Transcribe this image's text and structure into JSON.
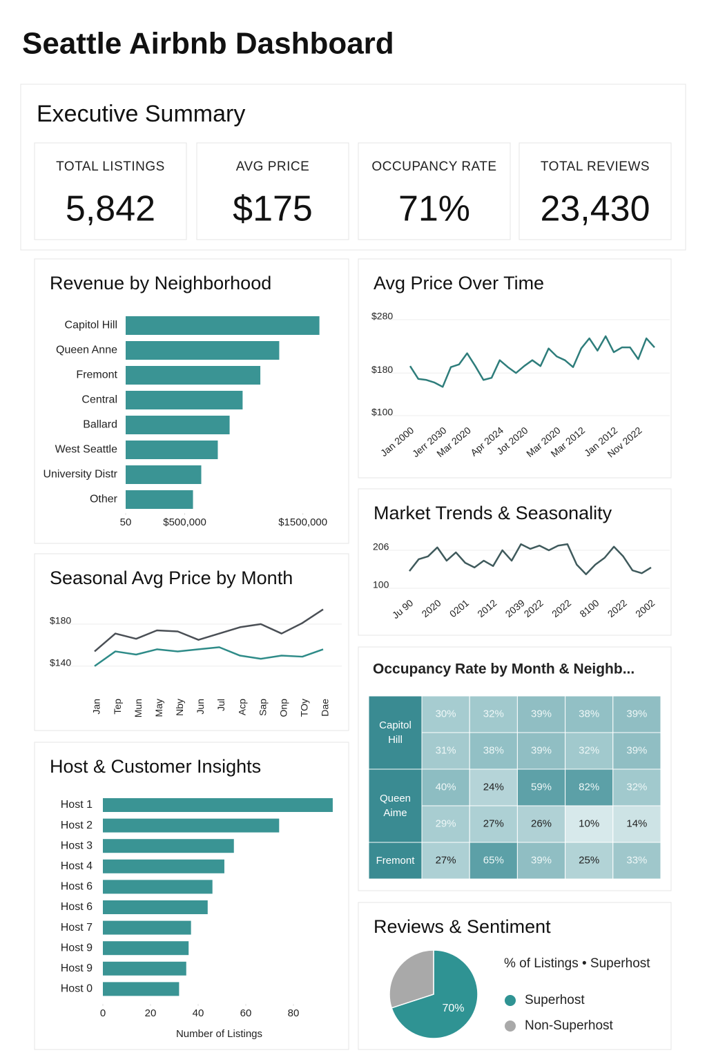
{
  "title": "Seattle Airbnb Dashboard",
  "summary": {
    "title": "Executive Summary",
    "kpis": [
      {
        "label": "TOTAL LISTINGS",
        "value": "5,842"
      },
      {
        "label": "AVG PRICE",
        "value": "$175"
      },
      {
        "label": "OCCUPANCY RATE",
        "value": "71%"
      },
      {
        "label": "TOTAL REVIEWS",
        "value": "23,430"
      }
    ]
  },
  "chart_data": [
    {
      "type": "hbar",
      "title": "Revenue by Neighborhood",
      "categories": [
        "Capitol Hill",
        "Queen Anne",
        "Fremont",
        "Central",
        "Ballard",
        "West Seattle",
        "University Distr",
        "Other"
      ],
      "values": [
        1640000,
        1300000,
        1140000,
        990000,
        880000,
        780000,
        640000,
        570000
      ],
      "color": "#3a9494",
      "xlim": [
        50,
        1800000
      ],
      "xticks": [
        50,
        {
          "value": 500000,
          "label": "$500,000"
        },
        {
          "value": 1500000,
          "label": "$1500,000"
        }
      ]
    },
    {
      "type": "line",
      "title": "Avg Price Over Time",
      "categories": [
        "Jan 2000",
        null,
        null,
        null,
        "Jerr 2030",
        null,
        null,
        "Mar 2020",
        null,
        null,
        null,
        "Apr 2024",
        null,
        null,
        "Jot 2020",
        null,
        null,
        null,
        "Mar 2020",
        null,
        null,
        "Mar 2012",
        null,
        null,
        null,
        "Jan 2012",
        null,
        null,
        "Nov 2022",
        null,
        null
      ],
      "values": [
        193,
        169,
        167,
        162,
        154,
        191,
        196,
        217,
        193,
        167,
        171,
        204,
        191,
        180,
        193,
        204,
        193,
        226,
        211,
        204,
        191,
        226,
        245,
        222,
        249,
        219,
        228,
        228,
        206,
        245,
        228
      ],
      "color": "#2e7d7b",
      "ylim": [
        100,
        280
      ],
      "yticks": [
        {
          "value": 100,
          "label": "$100"
        },
        {
          "value": 180,
          "label": "$180"
        },
        {
          "value": 280,
          "label": "$280"
        }
      ],
      "grid": true
    },
    {
      "type": "line",
      "title": "Seasonal Avg Price by Month",
      "categories": [
        "Jan",
        "Tep",
        "Mun",
        "May",
        "Nby",
        "Jun",
        "Jul",
        "Acp",
        "Sap",
        "Onp",
        "TOy",
        "Dae"
      ],
      "series": [
        {
          "color": "#4a4f55",
          "values": [
            154,
            171,
            166,
            174,
            173,
            165,
            171,
            177,
            180,
            171,
            181,
            194
          ]
        },
        {
          "color": "#2e8b88",
          "values": [
            140,
            154,
            151,
            156,
            154,
            156,
            158,
            150,
            147,
            150,
            149,
            156
          ]
        }
      ],
      "ylim": [
        130,
        195
      ],
      "yticks": [
        {
          "value": 140,
          "label": "$140"
        },
        {
          "value": 180,
          "label": "$180"
        }
      ],
      "grid": true
    },
    {
      "type": "line",
      "title": "Market Trends & Seasonality",
      "categories": [
        "Ju 90",
        null,
        null,
        "2020",
        null,
        null,
        "0201",
        null,
        null,
        "2012",
        null,
        null,
        "2039",
        null,
        "2022",
        null,
        null,
        "2022",
        null,
        null,
        "8100",
        null,
        null,
        "2022",
        null,
        null,
        "2002"
      ],
      "values": [
        148,
        181,
        189,
        214,
        177,
        200,
        171,
        158,
        177,
        162,
        206,
        177,
        223,
        210,
        219,
        206,
        219,
        223,
        166,
        139,
        166,
        185,
        216,
        189,
        150,
        142,
        158
      ],
      "color": "#3f5a5c",
      "ylim": [
        80,
        230
      ],
      "yticks": [
        100,
        206
      ],
      "grid": true
    },
    {
      "type": "heatmap",
      "title": "Occupancy Rate by Month & Neighb...",
      "color": "#3a8b92",
      "rows": [
        {
          "label": "Capitol Hill",
          "values": [
            [
              30,
              32,
              39,
              38,
              39
            ],
            [
              31,
              38,
              39,
              32,
              39
            ]
          ],
          "value_labels": [
            [
              "30%",
              "32%",
              "39%",
              "38%",
              "39%"
            ],
            [
              "31%",
              "38%",
              "39%",
              "32%",
              "39%"
            ]
          ]
        },
        {
          "label": "Queen Aime",
          "values": [
            [
              40,
              24,
              59,
              82,
              32
            ],
            [
              29,
              27,
              26,
              10,
              14
            ]
          ],
          "value_labels": [
            [
              "40%",
              "24%",
              "59%",
              "82%",
              "32%"
            ],
            [
              "29%",
              "27%",
              "26%",
              "10%",
              "14%"
            ]
          ]
        },
        {
          "label": "Fremont",
          "values": [
            [
              27,
              65,
              39,
              25,
              33
            ]
          ],
          "value_labels": [
            [
              "27%",
              "65%",
              "39%",
              "25%",
              "33%"
            ]
          ]
        }
      ]
    },
    {
      "type": "hbar",
      "title": "Host & Customer Insights",
      "categories": [
        "Host 1",
        "Host 2",
        "Host 3",
        "Host 4",
        "Host 6",
        "Host 6",
        "Host 7",
        "Host 9",
        "Host 9",
        "Host 0"
      ],
      "values": [
        96.5,
        74,
        55,
        51,
        46,
        44,
        37,
        36,
        35,
        32
      ],
      "color": "#3a9494",
      "xlim": [
        0,
        100
      ],
      "xticks": [
        0,
        20,
        40,
        60,
        80
      ],
      "xlabel": "Number of Listings"
    },
    {
      "type": "pie",
      "title": "Reviews & Sentiment",
      "legend_title": "% of Listings • Superhost",
      "categories": [
        "Superhost",
        "Non-Superhost"
      ],
      "values": [
        70,
        30
      ],
      "value_labels": [
        "70%",
        null
      ],
      "colors": [
        "#2f9393",
        "#a9a9a9"
      ]
    }
  ]
}
